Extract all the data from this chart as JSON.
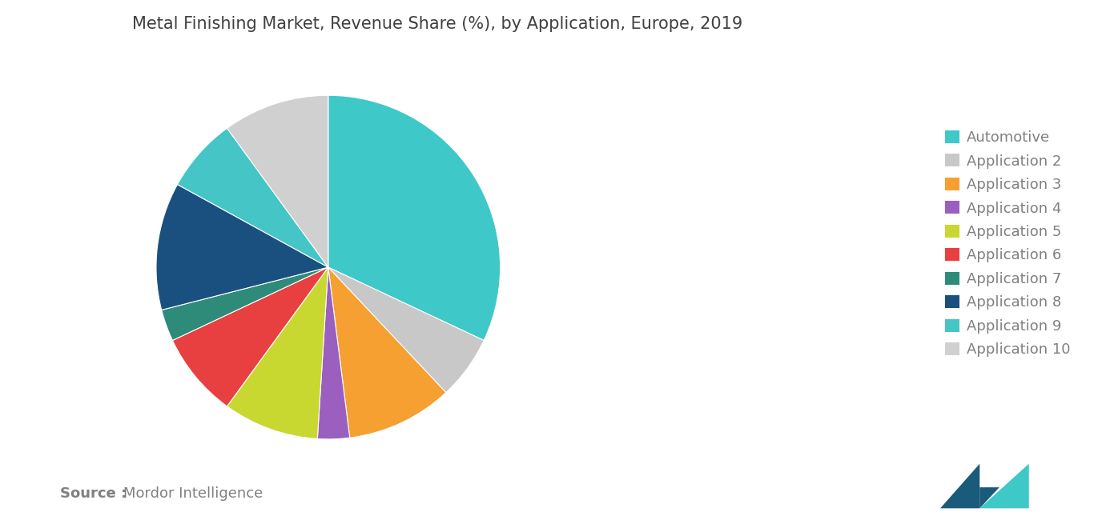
{
  "title": "Metal Finishing Market, Revenue Share (%), by Application, Europe, 2019",
  "labels": [
    "Automotive",
    "Application 2",
    "Application 3",
    "Application 4",
    "Application 5",
    "Application 6",
    "Application 7",
    "Application 8",
    "Application 9",
    "Application 10"
  ],
  "sizes": [
    32,
    6,
    10,
    3,
    9,
    8,
    3,
    12,
    7,
    10
  ],
  "colors": [
    "#3EC8C8",
    "#C8C8C8",
    "#F5A030",
    "#9B5FC0",
    "#C8D830",
    "#E84040",
    "#2E8B7A",
    "#1A5080",
    "#45C5C5",
    "#D0D0D0"
  ],
  "start_angle": 90,
  "source_bold": "Source :",
  "source_text": "Mordor Intelligence",
  "title_fontsize": 15,
  "legend_fontsize": 13,
  "source_fontsize": 13,
  "bg_color": "#FFFFFF",
  "text_color": "#808080",
  "title_color": "#404040",
  "logo_color1": "#1A5A7A",
  "logo_color2": "#3EC8C8"
}
